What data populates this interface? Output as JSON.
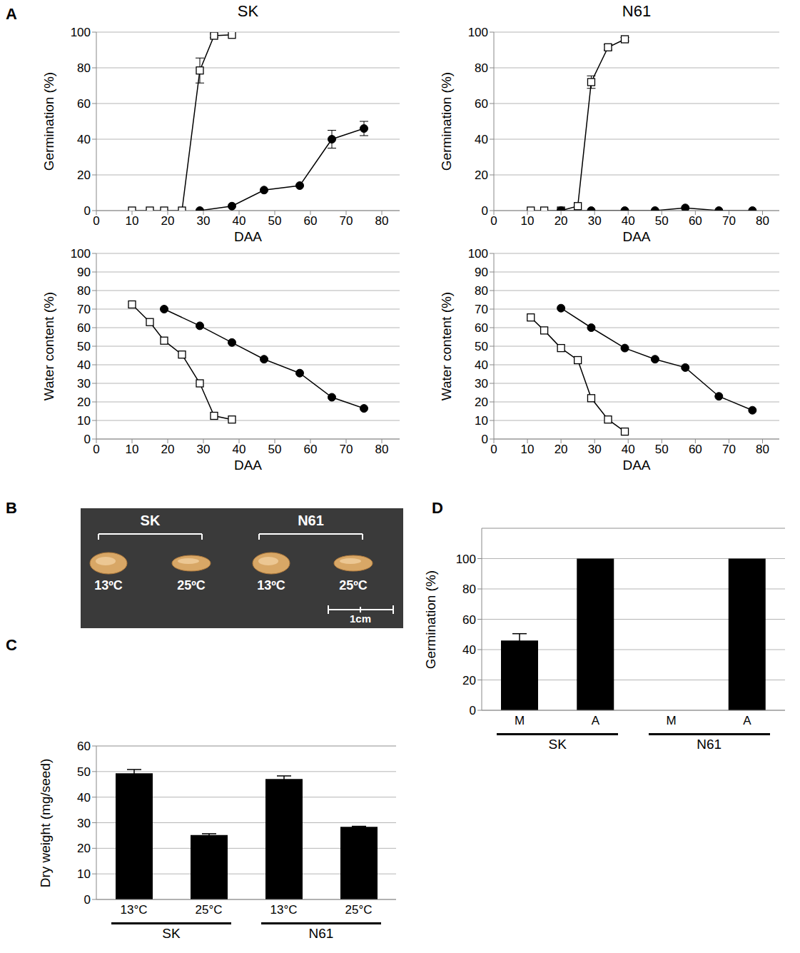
{
  "chart_data": [
    {
      "panel": "A",
      "type": "line",
      "title": "SK",
      "xlabel": "DAA",
      "ylabel": "Germination (%)",
      "xlim": [
        0,
        85
      ],
      "xticks": [
        0,
        10,
        20,
        30,
        40,
        50,
        60,
        70,
        80
      ],
      "ylim": [
        0,
        100
      ],
      "yticks": [
        0,
        20,
        40,
        60,
        80,
        100
      ],
      "grid": true,
      "series": [
        {
          "color": "#000000",
          "marker": "square",
          "x": [
            10,
            15,
            19,
            24,
            29,
            33,
            38
          ],
          "values": [
            0,
            0,
            0,
            0,
            78.5,
            98,
            98.5
          ],
          "errors": [
            0,
            0,
            0,
            0,
            7,
            1,
            0
          ]
        },
        {
          "color": "#000000",
          "marker": "circle",
          "x": [
            29,
            38,
            47,
            57,
            66,
            75
          ],
          "values": [
            0,
            2.5,
            11.5,
            14,
            40,
            46
          ],
          "errors": [
            0,
            0,
            0,
            0,
            5,
            4
          ]
        }
      ]
    },
    {
      "type": "line",
      "xlabel": "DAA",
      "ylabel": "Water content (%)",
      "xlim": [
        0,
        85
      ],
      "xticks": [
        0,
        10,
        20,
        30,
        40,
        50,
        60,
        70,
        80
      ],
      "ylim": [
        0,
        100
      ],
      "yticks": [
        0,
        10,
        20,
        30,
        40,
        50,
        60,
        70,
        80,
        90,
        100
      ],
      "grid": true,
      "series": [
        {
          "color": "#000000",
          "marker": "square",
          "x": [
            10,
            15,
            19,
            24,
            29,
            33,
            38
          ],
          "values": [
            72.5,
            63,
            53,
            45.5,
            30,
            12.5,
            10.5
          ]
        },
        {
          "color": "#000000",
          "marker": "circle",
          "x": [
            19,
            29,
            38,
            47,
            57,
            66,
            75
          ],
          "values": [
            70,
            61,
            52,
            43,
            35.5,
            22.5,
            16.5
          ]
        }
      ]
    },
    {
      "type": "line",
      "title": "N61",
      "xlabel": "DAA",
      "ylabel": "Germination (%)",
      "xlim": [
        0,
        85
      ],
      "xticks": [
        0,
        10,
        20,
        30,
        40,
        50,
        60,
        70,
        80
      ],
      "ylim": [
        0,
        100
      ],
      "yticks": [
        0,
        20,
        40,
        60,
        80,
        100
      ],
      "grid": true,
      "series": [
        {
          "color": "#000000",
          "marker": "square",
          "x": [
            11,
            15,
            20,
            25,
            29,
            34,
            39
          ],
          "values": [
            0,
            0,
            0,
            2.5,
            72,
            91.5,
            96
          ],
          "errors": [
            0,
            0,
            0,
            0,
            3.5,
            1.5,
            1
          ]
        },
        {
          "color": "#000000",
          "marker": "circle",
          "x": [
            20,
            29,
            39,
            48,
            57,
            67,
            77
          ],
          "values": [
            0,
            0,
            0,
            0,
            1.5,
            0,
            0
          ]
        }
      ]
    },
    {
      "type": "line",
      "xlabel": "DAA",
      "ylabel": "Water content (%)",
      "xlim": [
        0,
        85
      ],
      "xticks": [
        0,
        10,
        20,
        30,
        40,
        50,
        60,
        70,
        80
      ],
      "ylim": [
        0,
        100
      ],
      "yticks": [
        0,
        10,
        20,
        30,
        40,
        50,
        60,
        70,
        80,
        90,
        100
      ],
      "grid": true,
      "series": [
        {
          "color": "#000000",
          "marker": "square",
          "x": [
            11,
            15,
            20,
            25,
            29,
            34,
            39
          ],
          "values": [
            65.5,
            58.5,
            49,
            42.5,
            22,
            10.5,
            4
          ]
        },
        {
          "color": "#000000",
          "marker": "circle",
          "x": [
            20,
            29,
            39,
            48,
            57,
            67,
            77
          ],
          "values": [
            70.5,
            60,
            49,
            43,
            38.5,
            23,
            15.5
          ]
        }
      ]
    },
    {
      "panel": "C",
      "type": "bar",
      "ylabel": "Dry weight (mg/seed)",
      "categories": [
        "13°C",
        "25°C",
        "13°C",
        "25°C"
      ],
      "groups": [
        "SK",
        "N61"
      ],
      "values": [
        49.3,
        25.2,
        47.1,
        28.4
      ],
      "errors": [
        1.5,
        0.5,
        1.2,
        0.2
      ],
      "color": "#000000",
      "ylim": [
        0,
        60
      ],
      "yticks": [
        0,
        10,
        20,
        30,
        40,
        50,
        60
      ],
      "grid": true
    },
    {
      "panel": "D",
      "type": "bar",
      "ylabel": "Germination (%)",
      "categories": [
        "M",
        "A",
        "M",
        "A"
      ],
      "groups": [
        "SK",
        "N61"
      ],
      "values": [
        46,
        100,
        0,
        100
      ],
      "errors": [
        4.5,
        0,
        0,
        0
      ],
      "color": "#000000",
      "ylim": [
        0,
        120
      ],
      "yticks": [
        0,
        20,
        40,
        60,
        80,
        100
      ],
      "grid": true
    }
  ],
  "photo": {
    "panel": "B",
    "groups": [
      {
        "label": "SK",
        "items": [
          "13ºC",
          "25ºC"
        ]
      },
      {
        "label": "N61",
        "items": [
          "13ºC",
          "25ºC"
        ]
      }
    ],
    "scale_bar": "1cm"
  }
}
